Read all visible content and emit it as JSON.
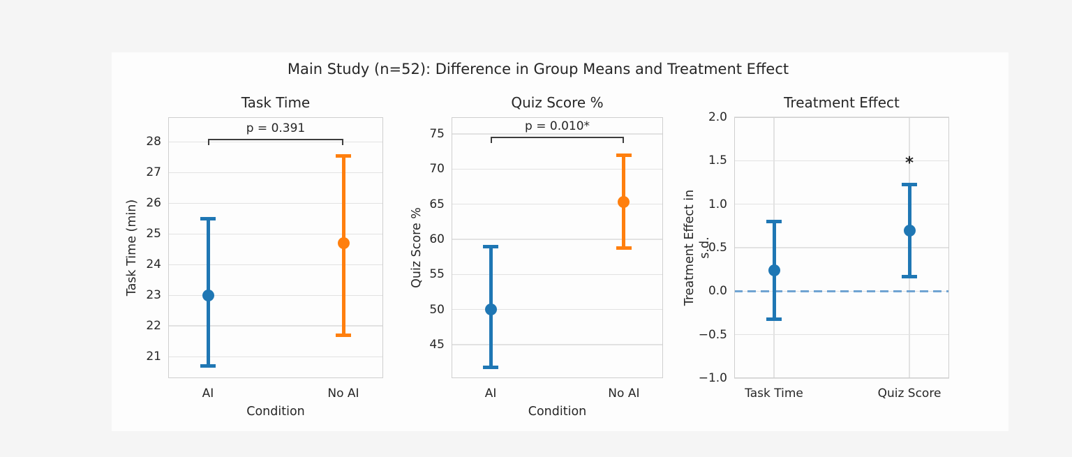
{
  "figure": {
    "suptitle": "Main Study (n=52): Difference in Group Means and Treatment Effect",
    "colors": {
      "blue": "#1f77b4",
      "orange": "#ff7f0e",
      "grid": "#e2e2e2",
      "axis_border": "#cfcfcf",
      "text": "#262626",
      "bracket": "#3d3d3d",
      "zero_line": "#6fa3d2",
      "plot_bg": "#fdfdfd"
    }
  },
  "chart_data": [
    {
      "type": "errorbar",
      "title": "Task Time",
      "xlabel": "Condition",
      "ylabel": "Task Time (min)",
      "ylim": [
        20.3,
        28.8
      ],
      "yticks": [
        21,
        22,
        23,
        24,
        25,
        26,
        27,
        28
      ],
      "ytick_labels": [
        "21",
        "22",
        "23",
        "24",
        "25",
        "26",
        "27",
        "28"
      ],
      "categories": [
        "AI",
        "No AI"
      ],
      "vertical_grid": false,
      "series": [
        {
          "name": "AI",
          "color_key": "blue",
          "mean": 23.0,
          "ci_low": 20.7,
          "ci_high": 25.5
        },
        {
          "name": "No AI",
          "color_key": "orange",
          "mean": 24.7,
          "ci_low": 21.7,
          "ci_high": 27.55
        }
      ],
      "p_annotation": {
        "text": "p = 0.391",
        "bracket_y": 28.1
      }
    },
    {
      "type": "errorbar",
      "title": "Quiz Score %",
      "xlabel": "Condition",
      "ylabel": "Quiz Score %",
      "ylim": [
        40.2,
        77.4
      ],
      "yticks": [
        45,
        50,
        55,
        60,
        65,
        70,
        75
      ],
      "ytick_labels": [
        "45",
        "50",
        "55",
        "60",
        "65",
        "70",
        "75"
      ],
      "categories": [
        "AI",
        "No AI"
      ],
      "vertical_grid": false,
      "series": [
        {
          "name": "AI",
          "color_key": "blue",
          "mean": 50.0,
          "ci_low": 41.7,
          "ci_high": 59.0
        },
        {
          "name": "No AI",
          "color_key": "orange",
          "mean": 65.3,
          "ci_low": 58.8,
          "ci_high": 72.0
        }
      ],
      "p_annotation": {
        "text": "p = 0.010*",
        "bracket_y": 74.6
      }
    },
    {
      "type": "errorbar",
      "title": "Treatment Effect",
      "xlabel": "",
      "ylabel": "Treatment Effect in s.d.",
      "ylim": [
        -1.0,
        2.0
      ],
      "yticks": [
        -1.0,
        -0.5,
        0.0,
        0.5,
        1.0,
        1.5,
        2.0
      ],
      "ytick_labels": [
        "−1.0",
        "−0.5",
        "0.0",
        "0.5",
        "1.0",
        "1.5",
        "2.0"
      ],
      "categories": [
        "Task Time",
        "Quiz Score"
      ],
      "vertical_grid": true,
      "zero_line": {
        "y": 0.0
      },
      "series": [
        {
          "name": "Task Time",
          "color_key": "blue",
          "mean": 0.24,
          "ci_low": -0.32,
          "ci_high": 0.8
        },
        {
          "name": "Quiz Score",
          "color_key": "blue",
          "mean": 0.7,
          "ci_low": 0.17,
          "ci_high": 1.23
        }
      ],
      "star_annotation": {
        "text": "*",
        "category_index": 1,
        "y": 1.47
      }
    }
  ]
}
